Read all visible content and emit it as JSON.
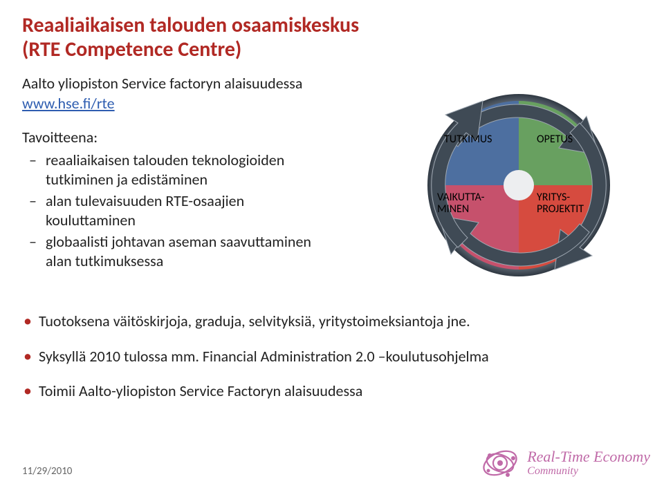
{
  "title_line1": "Reaaliaikaisen talouden osaamiskeskus",
  "title_line2": "(RTE Competence Centre)",
  "subtitle": "Aalto yliopiston Service factoryn alaisuudessa",
  "url": "www.hse.fi/rte",
  "goals_heading": "Tavoitteena:",
  "goals": [
    "reaaliaikaisen talouden teknologioiden tutkiminen ja edistäminen",
    "alan tulevaisuuden RTE-osaajien kouluttaminen",
    "globaalisti johtavan aseman saavuttaminen alan tutkimuksessa"
  ],
  "outputs": [
    "Tuotoksena väitöskirjoja, graduja, selvityksiä, yritystoimeksiantoja jne.",
    "Syksyllä 2010 tulossa mm. Financial Administration 2.0 –koulutusohjelma",
    "Toimii Aalto-yliopiston Service Factoryn alaisuudessa"
  ],
  "date": "11/29/2010",
  "logo": {
    "line1": "Real-Time Economy",
    "line2": "Community"
  },
  "diagram": {
    "quadrants": {
      "top_left": {
        "label": "TUTKIMUS",
        "fill": "#4D6FA0"
      },
      "top_right": {
        "label": "OPETUS",
        "fill": "#68A060"
      },
      "bottom_left": {
        "label": "VAIKUTTA-\nMINEN",
        "fill": "#C6516C"
      },
      "bottom_right": {
        "label": "YRITYS-\nPROJEKTIT",
        "fill": "#D64B3F"
      }
    },
    "arrow_color": "#3F4A55",
    "arrow_highlight": "#9FA8B2",
    "rim_outer": "#2F3842",
    "rim_inner": "#8A94A0",
    "hub_color": "#EDEEF0"
  },
  "colors": {
    "heading": "#B12924",
    "link": "#2E5DB0",
    "bullet": "#B12924",
    "logo": "#C06AA8",
    "date": "#666666",
    "text": "#222222"
  }
}
